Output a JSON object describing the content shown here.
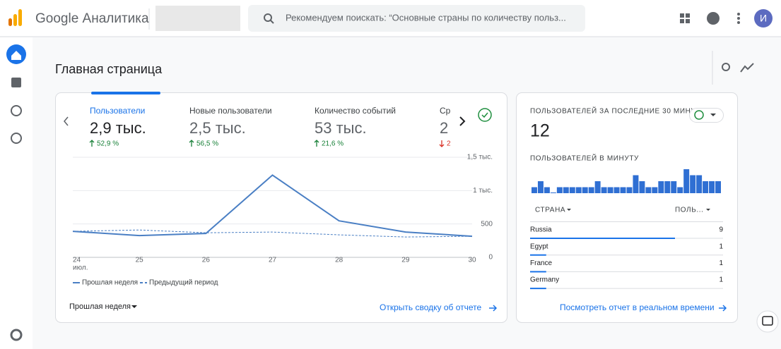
{
  "header": {
    "brand": "Google Аналитика",
    "search": "Рекомендуем поискать: “Основные страны по количеству польз...",
    "avatar": "И"
  },
  "page_title": "Главная страница",
  "metrics": [
    {
      "label": "Пользователи",
      "value": "2,9 тыс.",
      "change": "52,9 %",
      "direction": "up"
    },
    {
      "label": "Новые пользователи",
      "value": "2,5 тыс.",
      "change": "56,5 %",
      "direction": "up"
    },
    {
      "label": "Количество событий",
      "value": "53 тыс.",
      "change": "21,6 %",
      "direction": "up"
    },
    {
      "label": "Ср",
      "value": "2",
      "change": "2",
      "direction": "down"
    }
  ],
  "chart_data": {
    "type": "line",
    "x": [
      "24",
      "25",
      "26",
      "27",
      "28",
      "29",
      "30"
    ],
    "x_sub": "июл.",
    "series": [
      {
        "name": "Прошлая неделя",
        "color": "#4a7fc4",
        "dashed": false,
        "values": [
          390,
          326,
          358,
          1232,
          547,
          379,
          316
        ]
      },
      {
        "name": "Предыдущий период",
        "color": "#4a7fc4",
        "dashed": true,
        "values": [
          390,
          410,
          368,
          379,
          337,
          305,
          316
        ]
      }
    ],
    "ylim": [
      0,
      1500
    ],
    "yticks": [
      0,
      500,
      {
        "value": 1000,
        "label": "1 тыс."
      },
      {
        "value": 1500,
        "label": "1,5 тыс."
      }
    ],
    "grid": true
  },
  "period": "Прошлая неделя",
  "report_link": "Открыть сводку об отчете",
  "realtime": {
    "title": "ПОЛЬЗОВАТЕЛЕЙ ЗА ПОСЛЕДНИЕ 30 МИНУТ",
    "value": "12",
    "per_minute": "ПОЛЬЗОВАТЕЛЕЙ В МИНУТУ",
    "per_minute_values": [
      1,
      2,
      1,
      0,
      1,
      1,
      1,
      1,
      1,
      1,
      2,
      1,
      1,
      1,
      1,
      1,
      3,
      2,
      1,
      1,
      2,
      2,
      2,
      1,
      4,
      3,
      3,
      2,
      2,
      2
    ],
    "bar_color": "#2f6fd3",
    "columns": [
      "СТРАНА",
      "ПОЛЬ..."
    ],
    "rows": [
      {
        "country": "Russia",
        "users": 9
      },
      {
        "country": "Egypt",
        "users": 1
      },
      {
        "country": "France",
        "users": 1
      },
      {
        "country": "Germany",
        "users": 1
      }
    ],
    "link": "Посмотреть отчет в реальном времени"
  }
}
